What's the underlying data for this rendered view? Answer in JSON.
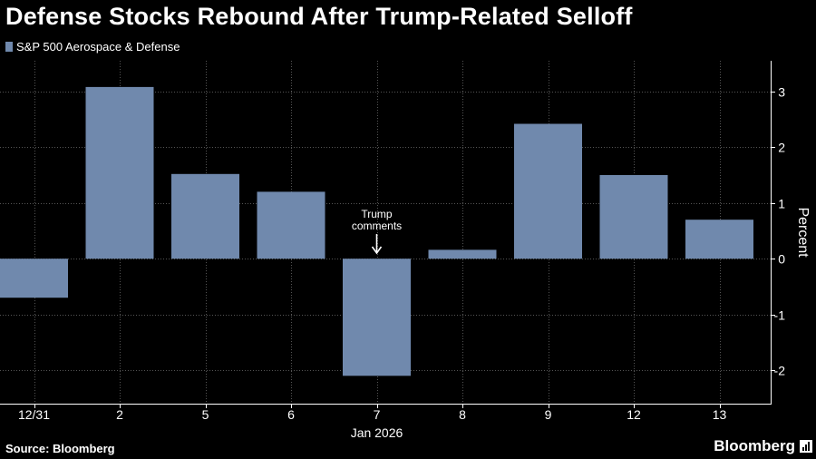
{
  "title": "Defense Stocks Rebound After Trump-Related Selloff",
  "legend": {
    "label": "S&P 500 Aerospace & Defense",
    "color": "#7089ad"
  },
  "footer": {
    "source": "Source: Bloomberg",
    "brand": "Bloomberg"
  },
  "chart_data": {
    "type": "bar",
    "title": "Defense Stocks Rebound After Trump-Related Selloff",
    "categories": [
      "12/31",
      "2",
      "5",
      "6",
      "7",
      "8",
      "9",
      "12",
      "13"
    ],
    "series": [
      {
        "name": "S&P 500 Aerospace & Defense",
        "values": [
          -0.7,
          3.08,
          1.52,
          1.2,
          -2.1,
          0.16,
          2.42,
          1.5,
          0.7
        ]
      }
    ],
    "xlabel": "Jan 2026",
    "ylabel": "Percent",
    "ylim": [
      -2.6,
      3.55
    ],
    "yticks": [
      3,
      2,
      1,
      0,
      -1,
      -2
    ],
    "ytick_labels": [
      "3",
      "2",
      "1",
      "0",
      "-1",
      "-2"
    ],
    "grid": true,
    "legend_position": "top-left",
    "annotations": [
      {
        "category": "7",
        "lines": [
          "Trump",
          "comments"
        ],
        "arrow": "down"
      }
    ],
    "colors": {
      "bar": "#7089ad",
      "axis": "#ffffff",
      "grid": "#555555",
      "background": "#000000"
    }
  }
}
